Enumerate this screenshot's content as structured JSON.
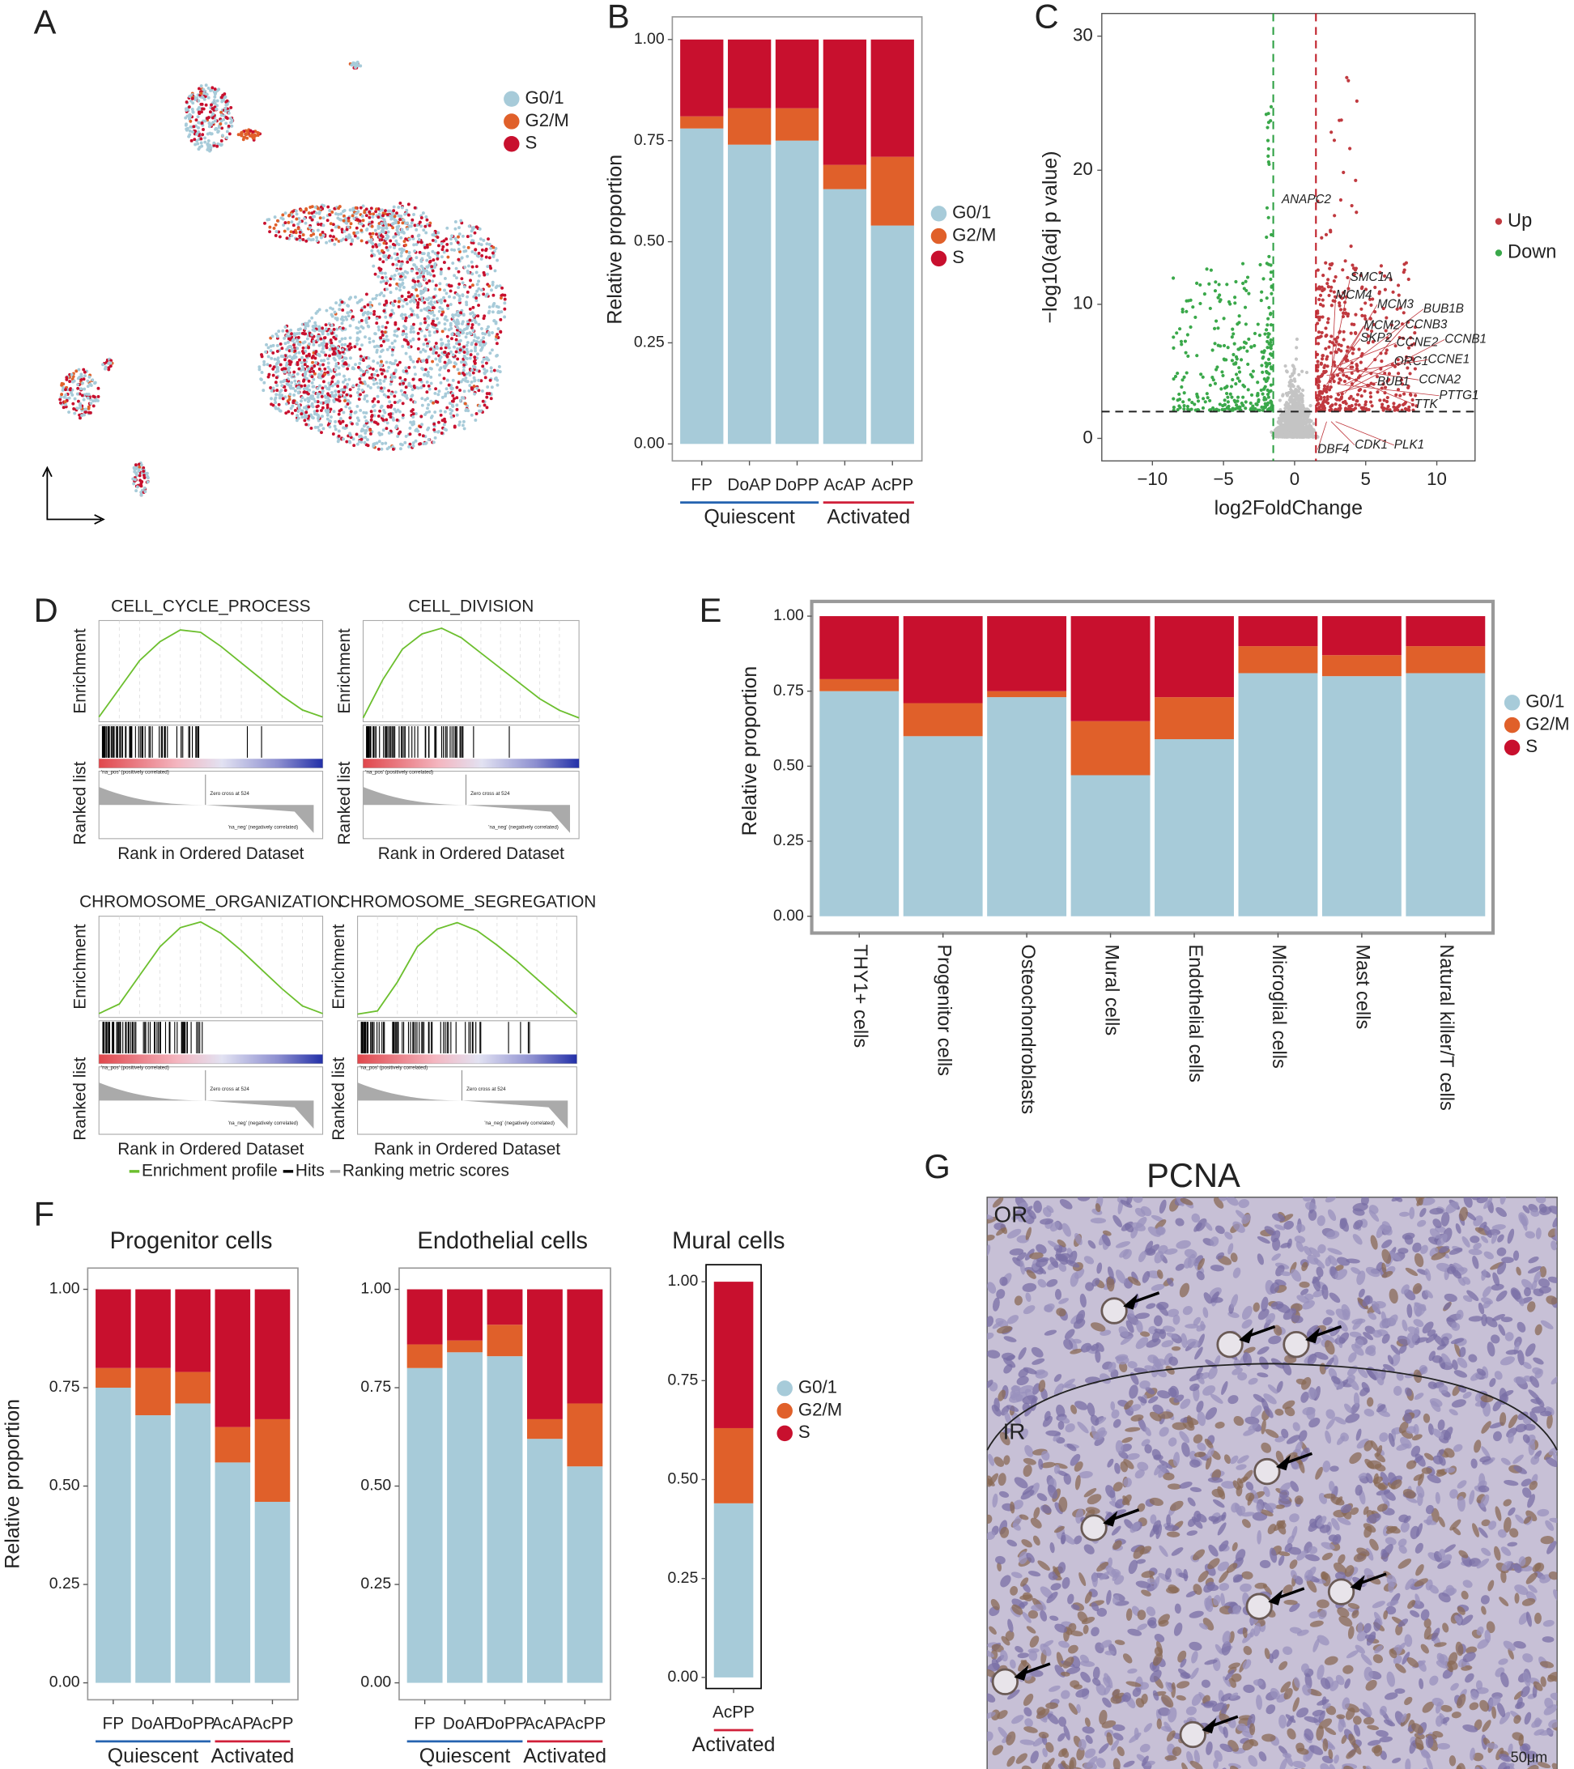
{
  "chart_data": [
    {
      "panel": "A",
      "type": "scatter",
      "series": [
        {
          "name": "G0/1",
          "color": "#a7cbd9"
        },
        {
          "name": "G2/M",
          "color": "#e0602a"
        },
        {
          "name": "S",
          "color": "#c8102e"
        }
      ]
    },
    {
      "panel": "B",
      "type": "bar",
      "y_label": "Relative proportion",
      "categories": [
        "FP",
        "DoAP",
        "DoPP",
        "AcAP",
        "AcPP"
      ],
      "series": [
        {
          "name": "G0/1",
          "color": "#a7cbd9",
          "values": [
            0.78,
            0.74,
            0.75,
            0.63,
            0.54
          ]
        },
        {
          "name": "G2/M",
          "color": "#e0602a",
          "values": [
            0.03,
            0.09,
            0.08,
            0.06,
            0.17
          ]
        },
        {
          "name": "S",
          "color": "#c8102e",
          "values": [
            0.19,
            0.17,
            0.17,
            0.31,
            0.29
          ]
        }
      ],
      "ylim": [
        -0.042,
        1.056
      ],
      "yticks": [
        {
          "value": 0,
          "label": "0.00"
        },
        {
          "value": 0.25,
          "label": "0.25"
        },
        {
          "value": 0.5,
          "label": "0.50"
        },
        {
          "value": 0.75,
          "label": "0.75"
        },
        {
          "value": 1,
          "label": "1.00"
        }
      ],
      "groups": [
        {
          "name": "Quiescent",
          "color": "#2563b0",
          "categories": [
            "FP",
            "DoAP",
            "DoPP"
          ]
        },
        {
          "name": "Activated",
          "color": "#d0203a",
          "categories": [
            "AcAP",
            "AcPP"
          ]
        }
      ]
    },
    {
      "panel": "C",
      "type": "volcano",
      "x_label": "log2FoldChange",
      "y_label": "−log10(adj p value)",
      "xlim": [
        -13.56,
        12.69
      ],
      "ylim": [
        -1.68,
        31.69
      ],
      "xticks": [
        {
          "value": -10,
          "label": "−10"
        },
        {
          "value": -5,
          "label": "−5"
        },
        0,
        5,
        10
      ],
      "yticks": [
        0,
        10,
        20,
        30
      ],
      "thresholds": {
        "x": [
          -1.5,
          1.5
        ],
        "y": 2
      },
      "series": [
        {
          "name": "Up",
          "color": "#c0393f"
        },
        {
          "name": "Down",
          "color": "#3aa84a"
        }
      ],
      "genes_down": [
        "ANAPC2"
      ],
      "genes_up": [
        "SMC1A",
        "MCM4",
        "BUB1B",
        "MCM3",
        "CCNB3",
        "MCM2",
        "SKP2",
        "CCNE2",
        "CCNB1",
        "ORC1",
        "CCNE1",
        "CCNA2",
        "BUB1",
        "PTTG1",
        "TTK",
        "DBF4",
        "CDK1",
        "PLK1"
      ]
    },
    {
      "panel": "D",
      "type": "gsea",
      "x": [
        0,
        100,
        200,
        300,
        400,
        500,
        600,
        700,
        800,
        900,
        1000,
        1100
      ],
      "xlim": [
        0,
        1100
      ],
      "x_label": "Rank in Ordered Dataset",
      "y_label_top": "Enrichment",
      "y_label_bottom": "Ranked list",
      "zero_cross": "Zero cross at 524",
      "pos_label": "'na_pos' (positively correlated)",
      "neg_label": "'na_neg' (negatively correlated)",
      "panels": [
        {
          "title": "CELL_CYCLE_PROCESS",
          "ylim": [
            -0.02,
            0.41
          ],
          "values": [
            0,
            0.12,
            0.24,
            0.32,
            0.37,
            0.36,
            0.3,
            0.23,
            0.16,
            0.09,
            0.03,
            0
          ]
        },
        {
          "title": "CELL_DIVISION",
          "ylim": [
            -0.02,
            0.51
          ],
          "values": [
            0,
            0.2,
            0.36,
            0.44,
            0.47,
            0.42,
            0.34,
            0.26,
            0.18,
            0.1,
            0.04,
            0
          ]
        },
        {
          "title": "CHROMOSOME_ORGANIZATION",
          "ylim": [
            -0.02,
            0.51
          ],
          "values": [
            0,
            0.05,
            0.2,
            0.35,
            0.45,
            0.48,
            0.42,
            0.33,
            0.23,
            0.13,
            0.04,
            0
          ]
        },
        {
          "title": "CHROMOSOME_SEGREGATION",
          "ylim": [
            -0.02,
            0.61
          ],
          "values": [
            0,
            0.02,
            0.2,
            0.42,
            0.53,
            0.57,
            0.52,
            0.43,
            0.33,
            0.22,
            0.11,
            0
          ]
        }
      ],
      "legend": [
        {
          "name": "Enrichment profile",
          "color": "#6cbf2e"
        },
        {
          "name": "Hits",
          "color": "#000000"
        },
        {
          "name": "Ranking metric scores",
          "color": "#aaaaaa"
        }
      ]
    },
    {
      "panel": "E",
      "type": "bar",
      "y_label": "Relative proportion",
      "categories": [
        "THY1+ cells",
        "Progenitor cells",
        "Osteochondroblasts",
        "Mural cells",
        "Endothelial cells",
        "Microglial cells",
        "Mast cells",
        "Natural killer/T cells"
      ],
      "series": [
        {
          "name": "G0/1",
          "color": "#a7cbd9",
          "values": [
            0.75,
            0.6,
            0.73,
            0.47,
            0.59,
            0.81,
            0.8,
            0.81
          ]
        },
        {
          "name": "G2/M",
          "color": "#e0602a",
          "values": [
            0.04,
            0.11,
            0.02,
            0.18,
            0.14,
            0.09,
            0.07,
            0.09
          ]
        },
        {
          "name": "S",
          "color": "#c8102e",
          "values": [
            0.21,
            0.29,
            0.25,
            0.35,
            0.27,
            0.1,
            0.13,
            0.1
          ]
        }
      ],
      "ylim": [
        -0.056,
        1.049
      ],
      "yticks": [
        {
          "value": 0,
          "label": "0.00"
        },
        {
          "value": 0.25,
          "label": "0.25"
        },
        {
          "value": 0.5,
          "label": "0.50"
        },
        {
          "value": 0.75,
          "label": "0.75"
        },
        {
          "value": 1,
          "label": "1.00"
        }
      ]
    },
    {
      "panel": "F",
      "type": "bar",
      "title": "Progenitor cells",
      "y_label": "Relative proportion",
      "categories": [
        "FP",
        "DoAP",
        "DoPP",
        "AcAP",
        "AcPP"
      ],
      "series": [
        {
          "name": "G0/1",
          "color": "#a7cbd9",
          "values": [
            0.75,
            0.68,
            0.71,
            0.56,
            0.46
          ]
        },
        {
          "name": "G2/M",
          "color": "#e0602a",
          "values": [
            0.05,
            0.12,
            0.08,
            0.09,
            0.21
          ]
        },
        {
          "name": "S",
          "color": "#c8102e",
          "values": [
            0.2,
            0.2,
            0.21,
            0.35,
            0.33
          ]
        }
      ],
      "ylim": [
        -0.043,
        1.054
      ],
      "yticks": [
        {
          "value": 0,
          "label": "0.00"
        },
        {
          "value": 0.25,
          "label": "0.25"
        },
        {
          "value": 0.5,
          "label": "0.50"
        },
        {
          "value": 0.75,
          "label": "0.75"
        },
        {
          "value": 1,
          "label": "1.00"
        }
      ],
      "groups": [
        {
          "name": "Quiescent",
          "color": "#2563b0",
          "categories": [
            "FP",
            "DoAP",
            "DoPP"
          ]
        },
        {
          "name": "Activated",
          "color": "#d0203a",
          "categories": [
            "AcAP",
            "AcPP"
          ]
        }
      ]
    },
    {
      "type": "bar",
      "title": "Endothelial cells",
      "categories": [
        "FP",
        "DoAP",
        "DoPP",
        "AcAP",
        "AcPP"
      ],
      "series": [
        {
          "name": "G0/1",
          "color": "#a7cbd9",
          "values": [
            0.8,
            0.84,
            0.83,
            0.62,
            0.55
          ]
        },
        {
          "name": "G2/M",
          "color": "#e0602a",
          "values": [
            0.06,
            0.03,
            0.08,
            0.05,
            0.16
          ]
        },
        {
          "name": "S",
          "color": "#c8102e",
          "values": [
            0.14,
            0.13,
            0.09,
            0.33,
            0.29
          ]
        }
      ],
      "ylim": [
        -0.043,
        1.054
      ],
      "yticks": [
        {
          "value": 0,
          "label": "0.00"
        },
        {
          "value": 0.25,
          "label": "0.25"
        },
        {
          "value": 0.5,
          "label": "0.50"
        },
        {
          "value": 0.75,
          "label": "0.75"
        },
        {
          "value": 1,
          "label": "1.00"
        }
      ],
      "groups": [
        {
          "name": "Quiescent",
          "color": "#2563b0",
          "categories": [
            "FP",
            "DoAP",
            "DoPP"
          ]
        },
        {
          "name": "Activated",
          "color": "#d0203a",
          "categories": [
            "AcAP",
            "AcPP"
          ]
        }
      ]
    },
    {
      "type": "bar",
      "title": "Mural cells",
      "categories": [
        "AcPP"
      ],
      "series": [
        {
          "name": "G0/1",
          "color": "#a7cbd9",
          "values": [
            0.44
          ]
        },
        {
          "name": "G2/M",
          "color": "#e0602a",
          "values": [
            0.19
          ]
        },
        {
          "name": "S",
          "color": "#c8102e",
          "values": [
            0.37
          ]
        }
      ],
      "ylim": [
        -0.028,
        1.043
      ],
      "yticks": [
        {
          "value": 0,
          "label": "0.00"
        },
        {
          "value": 0.25,
          "label": "0.25"
        },
        {
          "value": 0.5,
          "label": "0.50"
        },
        {
          "value": 0.75,
          "label": "0.75"
        },
        {
          "value": 1,
          "label": "1.00"
        }
      ],
      "groups": [
        {
          "name": "Activated",
          "color": "#d0203a",
          "categories": [
            "AcPP"
          ]
        }
      ]
    },
    {
      "panel": "G",
      "type": "image",
      "title": "PCNA",
      "labels": [
        "OR",
        "IR"
      ],
      "scale_bar": "50μm"
    }
  ]
}
